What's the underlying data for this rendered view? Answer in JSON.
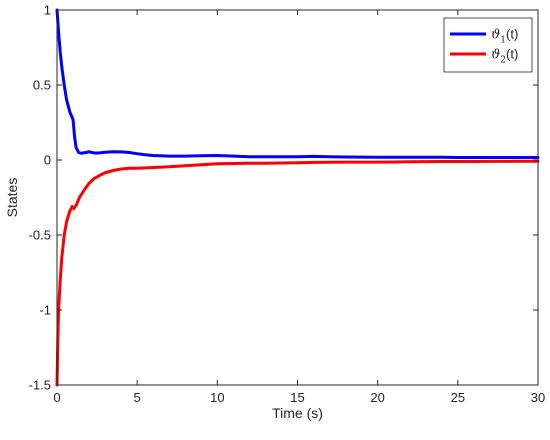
{
  "chart_data": {
    "type": "line",
    "title": "",
    "xlabel": "Time (s)",
    "ylabel": "States",
    "xlim": [
      0,
      30
    ],
    "ylim": [
      -1.5,
      1
    ],
    "xticks": [
      0,
      5,
      10,
      15,
      20,
      25,
      30
    ],
    "xtick_labels": [
      "0",
      "5",
      "10",
      "15",
      "20",
      "25",
      "30"
    ],
    "yticks": [
      -1.5,
      -1,
      -0.5,
      0,
      0.5,
      1
    ],
    "ytick_labels": [
      "-1.5",
      "-1",
      "-0.5",
      "0",
      "0.5",
      "1"
    ],
    "grid": false,
    "legend_position": "top-right",
    "series": [
      {
        "name": "ϑ1(t)",
        "legend": {
          "symbol": "ϑ",
          "subscript": "1",
          "suffix": "(t)"
        },
        "color": "#0000ff",
        "x": [
          0,
          0.1,
          0.2,
          0.3,
          0.45,
          0.6,
          0.8,
          1.0,
          1.1,
          1.2,
          1.35,
          1.5,
          1.8,
          2.0,
          2.3,
          2.6,
          3.0,
          3.5,
          4.0,
          4.5,
          5.0,
          5.5,
          6.0,
          7.0,
          8.0,
          9.0,
          10.0,
          11.0,
          12.0,
          13.0,
          14.0,
          15.0,
          16.0,
          17.0,
          18.0,
          19.0,
          20.0,
          21.0,
          22.0,
          23.0,
          24.0,
          25.0,
          26.0,
          27.0,
          28.0,
          29.0,
          30.0
        ],
        "y": [
          1.0,
          0.85,
          0.72,
          0.62,
          0.5,
          0.4,
          0.32,
          0.27,
          0.15,
          0.08,
          0.05,
          0.045,
          0.05,
          0.055,
          0.047,
          0.047,
          0.052,
          0.055,
          0.054,
          0.05,
          0.042,
          0.035,
          0.03,
          0.026,
          0.026,
          0.028,
          0.03,
          0.026,
          0.022,
          0.022,
          0.022,
          0.022,
          0.024,
          0.022,
          0.02,
          0.019,
          0.018,
          0.018,
          0.018,
          0.018,
          0.018,
          0.017,
          0.017,
          0.017,
          0.017,
          0.017,
          0.017
        ]
      },
      {
        "name": "ϑ2(t)",
        "legend": {
          "symbol": "ϑ",
          "subscript": "2",
          "suffix": "(t)"
        },
        "color": "#ff0000",
        "x": [
          0,
          0.05,
          0.1,
          0.2,
          0.3,
          0.45,
          0.6,
          0.8,
          0.95,
          1.05,
          1.2,
          1.4,
          1.7,
          2.0,
          2.3,
          2.7,
          3.0,
          3.5,
          4.0,
          4.5,
          5.0,
          6.0,
          7.0,
          8.0,
          9.0,
          10.0,
          11.0,
          12.0,
          13.0,
          14.0,
          15.0,
          16.0,
          17.0,
          18.0,
          19.0,
          20.0,
          21.0,
          22.0,
          23.0,
          24.0,
          25.0,
          26.0,
          27.0,
          28.0,
          29.0,
          30.0
        ],
        "y": [
          -1.5,
          -1.2,
          -1.0,
          -0.8,
          -0.65,
          -0.5,
          -0.41,
          -0.34,
          -0.31,
          -0.325,
          -0.3,
          -0.25,
          -0.2,
          -0.155,
          -0.125,
          -0.1,
          -0.085,
          -0.07,
          -0.06,
          -0.055,
          -0.055,
          -0.05,
          -0.045,
          -0.038,
          -0.032,
          -0.025,
          -0.023,
          -0.022,
          -0.022,
          -0.02,
          -0.018,
          -0.016,
          -0.015,
          -0.014,
          -0.014,
          -0.014,
          -0.013,
          -0.012,
          -0.011,
          -0.01,
          -0.01,
          -0.01,
          -0.009,
          -0.009,
          -0.008,
          -0.008
        ]
      }
    ]
  }
}
